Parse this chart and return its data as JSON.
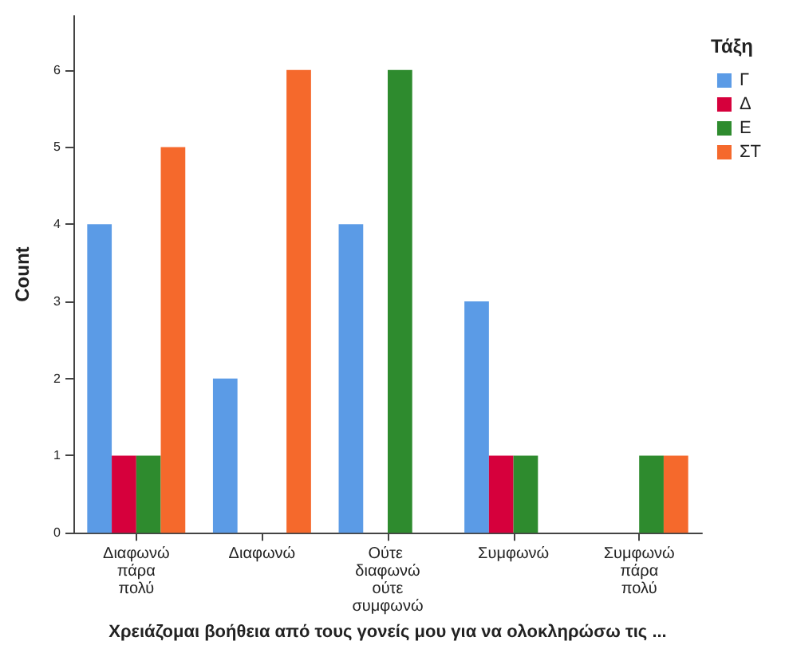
{
  "chart_data": {
    "type": "bar",
    "xlabel": "Χρειάζομαι βοήθεια από τους γονείς μου για να ολοκληρώσω τις ...",
    "ylabel": "Count",
    "legend_title": "Τάξη",
    "categories": [
      "Διαφωνώ πάρα πολύ",
      "Διαφωνώ",
      "Ούτε διαφωνώ ούτε συμφωνώ",
      "Συμφωνώ",
      "Συμφωνώ πάρα πολύ"
    ],
    "series": [
      {
        "name": "Γ",
        "color": "#5b9be6",
        "values": [
          4,
          2,
          4,
          3,
          0
        ]
      },
      {
        "name": "Δ",
        "color": "#d6003c",
        "values": [
          1,
          0,
          0,
          1,
          0
        ]
      },
      {
        "name": "Ε",
        "color": "#2e8b2e",
        "values": [
          1,
          0,
          6,
          1,
          1
        ]
      },
      {
        "name": "ΣΤ",
        "color": "#f5692c",
        "values": [
          5,
          6,
          0,
          0,
          1
        ]
      }
    ],
    "ylim": [
      0,
      6.7
    ],
    "yticks": [
      0,
      1,
      2,
      3,
      4,
      5,
      6
    ],
    "grid": false,
    "legend": "top right"
  }
}
